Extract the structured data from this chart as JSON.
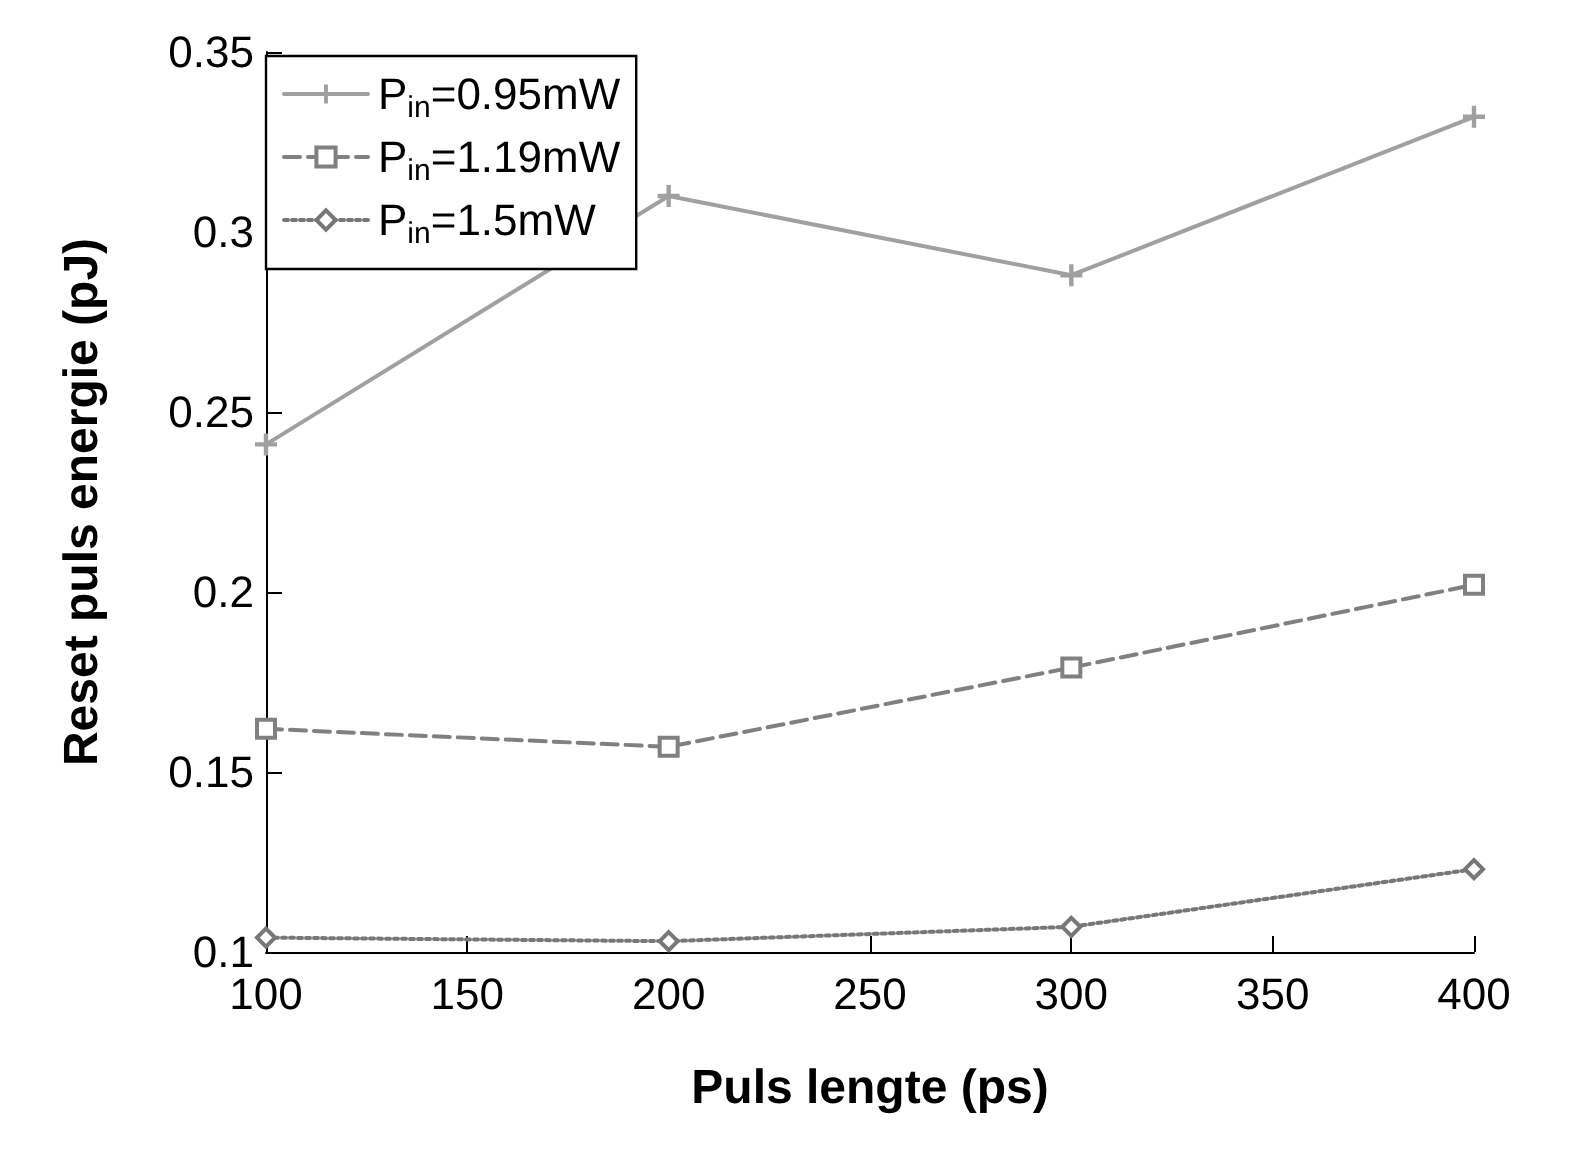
{
  "chart_data": {
    "type": "line",
    "xlabel": "Puls lengte (ps)",
    "ylabel": "Reset puls energie (pJ)",
    "x": [
      100,
      200,
      300,
      400
    ],
    "series": [
      {
        "name": "P$_{in}$=0.95mW",
        "color": "#a0a0a0",
        "marker": "cross",
        "line_style": "solid",
        "values": [
          0.241,
          0.31,
          0.288,
          0.332
        ]
      },
      {
        "name": "P$_{in}$=1.19mW",
        "color": "#808080",
        "marker": "square",
        "line_style": "dashed",
        "values": [
          0.162,
          0.157,
          0.179,
          0.202
        ]
      },
      {
        "name": "P$_{in}$=1.5mW",
        "color": "#777777",
        "marker": "diamond",
        "line_style": "dotted",
        "values": [
          0.104,
          0.103,
          0.107,
          0.123
        ]
      }
    ],
    "xlim": [
      100,
      400
    ],
    "xticks": [
      100,
      150,
      200,
      250,
      300,
      350,
      400
    ],
    "ylim": [
      0.1,
      0.35
    ],
    "yticks": [
      0.1,
      0.15,
      0.2,
      0.25,
      0.3,
      0.35
    ],
    "grid": false,
    "legend": "top left"
  }
}
